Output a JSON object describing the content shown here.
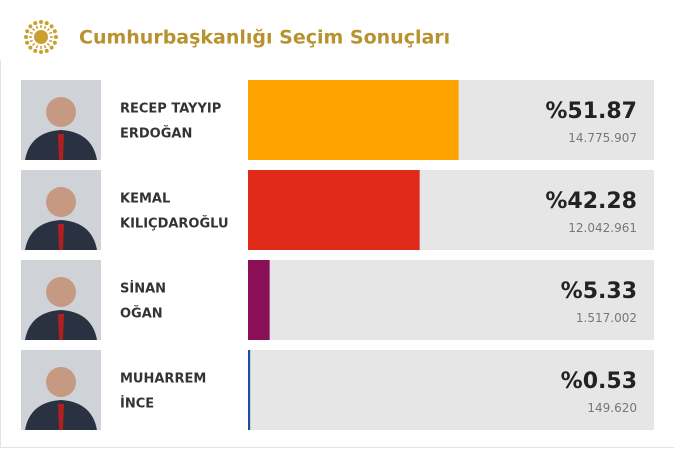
{
  "chart_data": {
    "type": "bar",
    "orientation": "horizontal",
    "title": "Cumhurbaşkanlığı Seçim Sonuçları",
    "categories": [
      "RECEP TAYYIP ERDOĞAN",
      "KEMAL KILIÇDAROĞLU",
      "SİNAN OĞAN",
      "MUHARREM İNCE"
    ],
    "values": [
      51.87,
      42.28,
      5.33,
      0.53
    ],
    "value_labels": [
      "%51.87",
      "%42.28",
      "%5.33",
      "%0.53"
    ],
    "colors": [
      "#ffa300",
      "#e02a1a",
      "#8a0f57",
      "#1b4f9c"
    ],
    "votes": {
      "values": [
        14775907,
        12042961,
        1517002,
        149620
      ],
      "value_labels": [
        "14.775.907",
        "12.042.961",
        "1.517.002",
        "149.620"
      ]
    },
    "xlim": [
      0,
      100
    ]
  }
}
